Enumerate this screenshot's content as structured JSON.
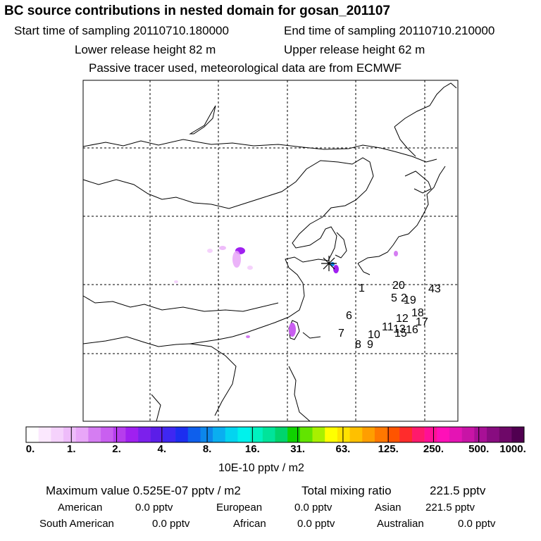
{
  "header": {
    "title": "BC  source contributions in nested domain for gosan_201107",
    "start_label": "Start time of sampling 20110710.180000",
    "end_label": "End time of sampling 20110710.210000",
    "lower_label": "Lower release height   82 m",
    "upper_label": "Upper release height   62 m",
    "note": "Passive tracer used, meteorological data are from ECMWF"
  },
  "map": {
    "receptor_marker": "asterisk-icon",
    "source_labels": [
      {
        "text": "1"
      },
      {
        "text": "20"
      },
      {
        "text": "43"
      },
      {
        "text": "5"
      },
      {
        "text": "2"
      },
      {
        "text": "19"
      },
      {
        "text": "6"
      },
      {
        "text": "18"
      },
      {
        "text": "12"
      },
      {
        "text": "17"
      },
      {
        "text": "11"
      },
      {
        "text": "13"
      },
      {
        "text": "16"
      },
      {
        "text": "15"
      },
      {
        "text": "7"
      },
      {
        "text": "10"
      },
      {
        "text": "8"
      },
      {
        "text": "9"
      }
    ]
  },
  "colorbar": {
    "colors": [
      "#ffffff",
      "#fbe8fe",
      "#f5d2fc",
      "#eebcfa",
      "#e8a6f8",
      "#d57df2",
      "#c95ff0",
      "#b63ded",
      "#a020f0",
      "#7c20ec",
      "#5b1ee8",
      "#3f27f2",
      "#1c2ef0",
      "#0e5fec",
      "#0c87ec",
      "#0aaef0",
      "#03d4f0",
      "#00f2ec",
      "#00f2c0",
      "#00e49a",
      "#00d46c",
      "#10d200",
      "#62e400",
      "#a8f000",
      "#ffff00",
      "#ffe200",
      "#ffc000",
      "#ff9e00",
      "#ff7800",
      "#ff5400",
      "#ff2c2c",
      "#ff1a6c",
      "#ff1096",
      "#ff10b8",
      "#e414b4",
      "#c814a6",
      "#a81096",
      "#880c80",
      "#6e0868",
      "#500050"
    ],
    "labels": [
      "0.",
      "1.",
      "2.",
      "4.",
      "8.",
      "16.",
      "31.",
      "63.",
      "125.",
      "250.",
      "500.",
      "1000."
    ],
    "units": "10E-10 pptv / m2"
  },
  "stats": {
    "max_label": "Maximum value  0.525E-07 pptv / m2",
    "total_label": "Total mixing ratio",
    "total_value": "221.5 pptv",
    "american_label": "American",
    "american_value": "0.0 pptv",
    "european_label": "European",
    "european_value": "0.0 pptv",
    "asian_label": "Asian",
    "asian_value": "221.5 pptv",
    "south_american_label": "South American",
    "south_american_value": "0.0 pptv",
    "african_label": "African",
    "african_value": "0.0 pptv",
    "australian_label": "Australian",
    "australian_value": "0.0 pptv"
  }
}
